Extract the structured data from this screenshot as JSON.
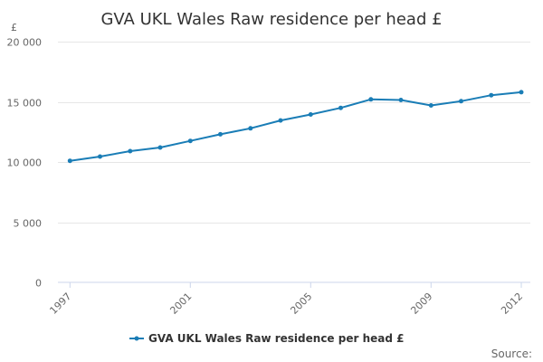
{
  "chart_data": {
    "type": "line",
    "title": "GVA UKL Wales Raw residence per head £",
    "y_unit": "£",
    "xlabel": "",
    "ylabel": "",
    "x": [
      1997,
      1998,
      1999,
      2000,
      2001,
      2002,
      2003,
      2004,
      2005,
      2006,
      2007,
      2008,
      2009,
      2010,
      2011,
      2012
    ],
    "x_tick_values": [
      1997,
      2001,
      2005,
      2009,
      2012
    ],
    "x_tick_labels": [
      "1997",
      "2001",
      "2005",
      "2009",
      "2012"
    ],
    "ylim": [
      0,
      20000
    ],
    "y_tick_values": [
      0,
      5000,
      10000,
      15000,
      20000
    ],
    "y_tick_labels": [
      "0",
      "5 000",
      "10 000",
      "15 000",
      "20 000"
    ],
    "grid": true,
    "legend_position": "bottom-center",
    "series": [
      {
        "name": "GVA UKL Wales Raw residence per head £",
        "color": "#1a7db6",
        "values": [
          10100,
          10450,
          10900,
          11200,
          11750,
          12300,
          12800,
          13450,
          13950,
          14500,
          15200,
          15150,
          14700,
          15050,
          15550,
          15800
        ]
      }
    ],
    "source_label": "Source:"
  }
}
